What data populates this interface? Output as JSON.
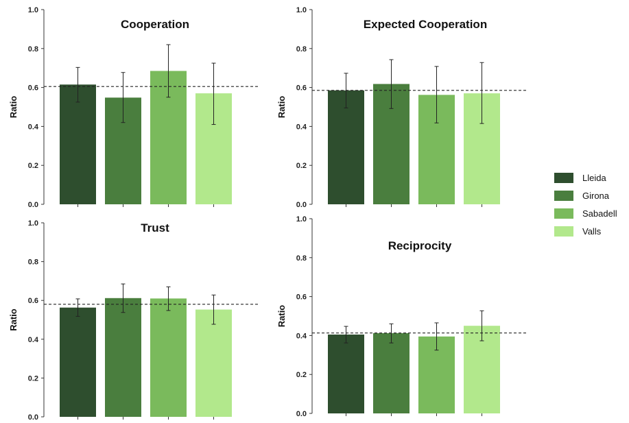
{
  "chart_data": [
    {
      "type": "bar",
      "title": "Cooperation",
      "ylabel": "Ratio",
      "ylim": [
        0,
        1
      ],
      "yticks": [
        "0.0",
        "0.2",
        "0.4",
        "0.6",
        "0.8",
        "1.0"
      ],
      "categories": [
        "Lleida",
        "Girona",
        "Sabadell",
        "Valls"
      ],
      "values": [
        0.615,
        0.548,
        0.685,
        0.57
      ],
      "error_low": [
        0.525,
        0.42,
        0.55,
        0.41
      ],
      "error_high": [
        0.703,
        0.677,
        0.82,
        0.725
      ],
      "reference_line": 0.605
    },
    {
      "type": "bar",
      "title": "Expected Cooperation",
      "ylabel": "Ratio",
      "ylim": [
        0,
        1
      ],
      "yticks": [
        "0.0",
        "0.2",
        "0.4",
        "0.6",
        "0.8",
        "1.0"
      ],
      "categories": [
        "Lleida",
        "Girona",
        "Sabadell",
        "Valls"
      ],
      "values": [
        0.585,
        0.618,
        0.562,
        0.57
      ],
      "error_low": [
        0.495,
        0.492,
        0.418,
        0.415
      ],
      "error_high": [
        0.673,
        0.743,
        0.708,
        0.728
      ],
      "reference_line": 0.585
    },
    {
      "type": "bar",
      "title": "Trust",
      "ylabel": "Ratio",
      "ylim": [
        0,
        1
      ],
      "yticks": [
        "0.0",
        "0.2",
        "0.4",
        "0.6",
        "0.8",
        "1.0"
      ],
      "categories": [
        "Lleida",
        "Girona",
        "Sabadell",
        "Valls"
      ],
      "values": [
        0.563,
        0.612,
        0.61,
        0.553
      ],
      "error_low": [
        0.518,
        0.538,
        0.548,
        0.477
      ],
      "error_high": [
        0.608,
        0.685,
        0.67,
        0.628
      ],
      "reference_line": 0.58
    },
    {
      "type": "bar",
      "title": "Reciprocity",
      "ylabel": "Ratio",
      "ylim": [
        0,
        1
      ],
      "yticks": [
        "0.0",
        "0.2",
        "0.4",
        "0.6",
        "0.8",
        "1.0"
      ],
      "categories": [
        "Lleida",
        "Girona",
        "Sabadell",
        "Valls"
      ],
      "values": [
        0.405,
        0.412,
        0.395,
        0.45
      ],
      "error_low": [
        0.362,
        0.362,
        0.325,
        0.373
      ],
      "error_high": [
        0.447,
        0.46,
        0.465,
        0.527
      ],
      "reference_line": 0.413
    }
  ],
  "legend": {
    "placement": "right",
    "items": [
      {
        "label": "Lleida",
        "color": "#2e4e2e"
      },
      {
        "label": "Girona",
        "color": "#4a7e3e"
      },
      {
        "label": "Sabadell",
        "color": "#7aba5c"
      },
      {
        "label": "Valls",
        "color": "#b2e88c"
      }
    ]
  }
}
